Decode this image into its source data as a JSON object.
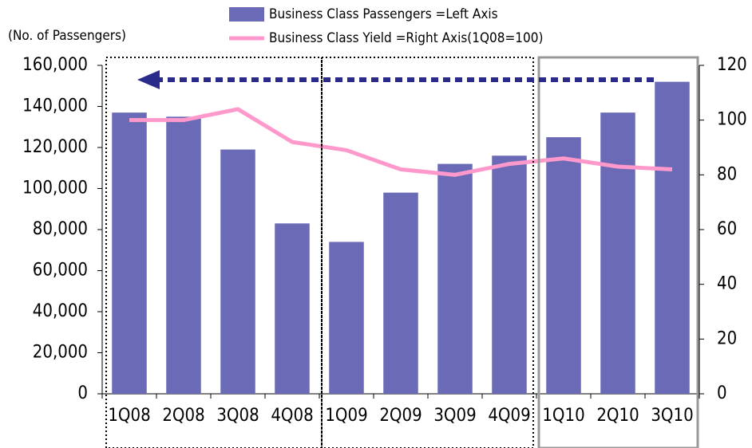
{
  "chart_data": {
    "type": "bar_line",
    "y_label": "(No. of Passengers)",
    "categories": [
      "1Q08",
      "2Q08",
      "3Q08",
      "4Q08",
      "1Q09",
      "2Q09",
      "3Q09",
      "4Q09",
      "1Q10",
      "2Q10",
      "3Q10"
    ],
    "series": [
      {
        "name": "Business Class Passengers =Left Axis",
        "type": "bar",
        "color": "#6a6ab6",
        "values": [
          137000,
          135000,
          119000,
          83000,
          74000,
          98000,
          112000,
          116000,
          125000,
          137000,
          152000
        ]
      },
      {
        "name": "Business Class Yield =Right Axis(1Q08=100)",
        "type": "line",
        "axis": "y2",
        "color": "#ff99cc",
        "values": [
          100,
          100,
          104,
          92,
          89,
          82,
          80,
          84,
          86,
          83,
          82
        ]
      }
    ],
    "ylim": [
      0,
      160000
    ],
    "yticks": [
      0,
      {
        "value": 20000,
        "label": "20,000"
      },
      {
        "value": 40000,
        "label": "40,000"
      },
      {
        "value": 60000,
        "label": "60,000"
      },
      {
        "value": 80000,
        "label": "80,000"
      },
      {
        "value": 100000,
        "label": "100,000"
      },
      {
        "value": 120000,
        "label": "120,000"
      },
      {
        "value": 140000,
        "label": "140,000"
      },
      {
        "value": 160000,
        "label": "160,000"
      }
    ],
    "y2lim": [
      0,
      120
    ],
    "y2ticks": [
      0,
      20,
      40,
      60,
      80,
      100,
      120
    ]
  }
}
